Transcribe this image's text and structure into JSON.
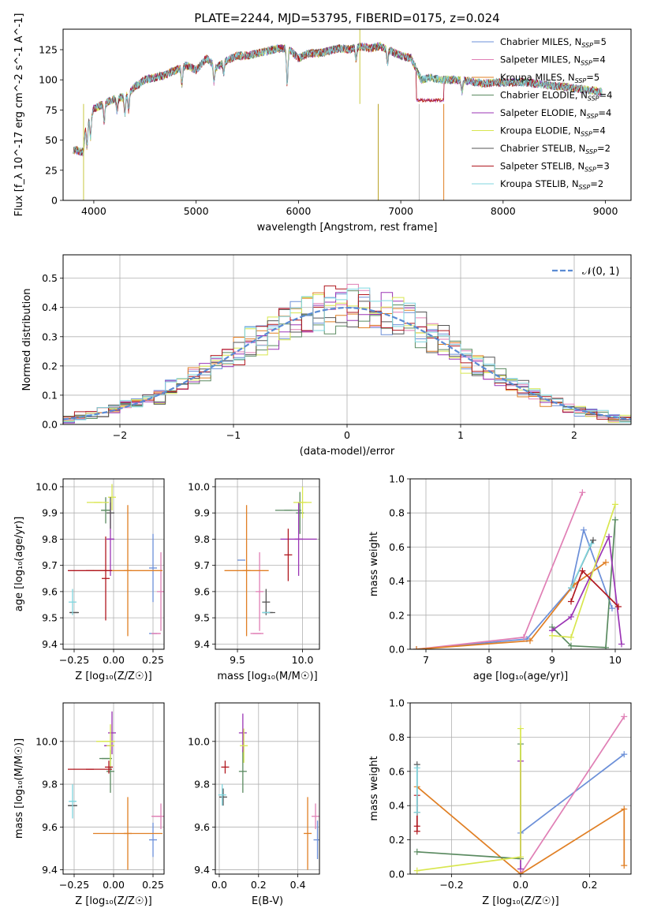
{
  "figure_title": "PLATE=2244, MJD=53795, FIBERID=0175, z=0.024",
  "models": [
    {
      "name": "Chabrier MILES",
      "nssp": "5",
      "color": "#6b8fd8"
    },
    {
      "name": "Salpeter MILES",
      "nssp": "4",
      "color": "#e07fb5"
    },
    {
      "name": "Kroupa MILES",
      "nssp": "5",
      "color": "#e07f24"
    },
    {
      "name": "Chabrier ELODIE",
      "nssp": "4",
      "color": "#5a8a60"
    },
    {
      "name": "Salpeter ELODIE",
      "nssp": "4",
      "color": "#9b35b5"
    },
    {
      "name": "Kroupa ELODIE",
      "nssp": "4",
      "color": "#d8e64e"
    },
    {
      "name": "Chabrier STELIB",
      "nssp": "2",
      "color": "#555555"
    },
    {
      "name": "Salpeter STELIB",
      "nssp": "3",
      "color": "#b0171f"
    },
    {
      "name": "Kroupa STELIB",
      "nssp": "2",
      "color": "#7fd6df"
    }
  ],
  "nssp_prefix": "N",
  "nssp_sub": "SSP",
  "chart_data": [
    {
      "id": "spectrum",
      "type": "line",
      "xlabel": "wavelength [Angstrom, rest frame]",
      "ylabel": "Flux [f_λ 10^-17 erg cm^-2 s^-1 A^-1]",
      "xlim": [
        3700,
        9250
      ],
      "ylim": [
        0,
        142
      ],
      "xticks": [
        4000,
        5000,
        6000,
        7000,
        8000,
        9000
      ],
      "yticks": [
        0,
        25,
        50,
        75,
        100,
        125
      ],
      "grid": false,
      "legend": "top-right",
      "continuum_points": [
        [
          3800,
          42
        ],
        [
          3900,
          40
        ],
        [
          3920,
          62
        ],
        [
          4000,
          76
        ],
        [
          4100,
          80
        ],
        [
          4200,
          84
        ],
        [
          4300,
          86
        ],
        [
          4400,
          94
        ],
        [
          4500,
          100
        ],
        [
          4700,
          104
        ],
        [
          4900,
          112
        ],
        [
          5000,
          108
        ],
        [
          5100,
          118
        ],
        [
          5200,
          110
        ],
        [
          5300,
          116
        ],
        [
          5400,
          120
        ],
        [
          5500,
          120
        ],
        [
          5600,
          122
        ],
        [
          5700,
          124
        ],
        [
          5800,
          126
        ],
        [
          5900,
          126
        ],
        [
          6000,
          118
        ],
        [
          6100,
          122
        ],
        [
          6200,
          122
        ],
        [
          6300,
          124
        ],
        [
          6400,
          126
        ],
        [
          6500,
          125
        ],
        [
          6600,
          128
        ],
        [
          6700,
          126
        ],
        [
          6800,
          128
        ],
        [
          6900,
          124
        ],
        [
          7000,
          120
        ],
        [
          7100,
          118
        ],
        [
          7200,
          100
        ],
        [
          7300,
          102
        ],
        [
          7400,
          100
        ],
        [
          7600,
          100
        ],
        [
          7800,
          97
        ],
        [
          8000,
          98
        ],
        [
          8200,
          98
        ],
        [
          8400,
          96
        ],
        [
          8600,
          94
        ],
        [
          8800,
          92
        ],
        [
          8970,
          90
        ]
      ],
      "absorption_lines": [
        [
          3934,
          20
        ],
        [
          3968,
          18
        ],
        [
          4102,
          16
        ],
        [
          4227,
          10
        ],
        [
          4304,
          14
        ],
        [
          4340,
          14
        ],
        [
          4861,
          14
        ],
        [
          5175,
          14
        ],
        [
          5270,
          8
        ],
        [
          5890,
          30
        ],
        [
          6563,
          10
        ],
        [
          6870,
          12
        ],
        [
          7600,
          10
        ]
      ],
      "spikes": [
        [
          3900,
          0
        ],
        [
          6780,
          0
        ],
        [
          6600,
          142
        ],
        [
          7180,
          0
        ],
        [
          7420,
          0
        ]
      ],
      "salpeter_drop": {
        "from": 7150,
        "to": 7420,
        "value": 83,
        "models": [
          2,
          4,
          7
        ]
      }
    },
    {
      "id": "residuals",
      "type": "line",
      "xlabel": "(data-model)/error",
      "ylabel": "Normed distribution",
      "xlim": [
        -2.5,
        2.5
      ],
      "ylim": [
        0,
        0.58
      ],
      "xticks": [
        -2,
        -1,
        0,
        1,
        2
      ],
      "yticks": [
        0,
        0.1,
        0.2,
        0.3,
        0.4,
        0.5
      ],
      "grid": true,
      "legend": "top-right",
      "legend_label": "𝒩(0, 1)",
      "gaussian": {
        "mu": 0,
        "sigma": 1,
        "color": "#5b8bd4"
      },
      "bin_width": 0.1
    },
    {
      "id": "age-vs-Z",
      "type": "scatter",
      "xlabel": "Z [log₁₀(Z/Z☉)]",
      "ylabel": "age  [log₁₀(age/yr)]",
      "xlim": [
        -0.32,
        0.32
      ],
      "ylim": [
        9.38,
        10.03
      ],
      "xticks": [
        -0.25,
        0.0,
        0.25
      ],
      "yticks": [
        9.4,
        9.5,
        9.6,
        9.7,
        9.8,
        9.9,
        10.0
      ],
      "grid": true,
      "points": [
        {
          "model": 0,
          "x": 0.25,
          "y": 9.69,
          "xerr": 0.0,
          "yerr": 0.13
        },
        {
          "model": 0,
          "x": 0.25,
          "y": 9.44,
          "xerr": 0.0,
          "yerr": 0.0
        },
        {
          "model": 1,
          "x": 0.27,
          "y": 9.44,
          "xerr": 0.03,
          "yerr": 0.0
        },
        {
          "model": 1,
          "x": 0.3,
          "y": 9.6,
          "xerr": 0.0,
          "yerr": 0.15
        },
        {
          "model": 2,
          "x": 0.09,
          "y": 9.68,
          "xerr": 0.22,
          "yerr": 0.25
        },
        {
          "model": 3,
          "x": -0.05,
          "y": 9.91,
          "xerr": 0.03,
          "yerr": 0.05
        },
        {
          "model": 4,
          "x": -0.02,
          "y": 9.8,
          "xerr": 0.02,
          "yerr": 0.14
        },
        {
          "model": 5,
          "x": -0.1,
          "y": 9.94,
          "xerr": 0.07,
          "yerr": 0.0
        },
        {
          "model": 5,
          "x": -0.01,
          "y": 9.96,
          "xerr": 0.0,
          "yerr": 0.05
        },
        {
          "model": 6,
          "x": -0.25,
          "y": 9.52,
          "xerr": 0.03,
          "yerr": 0.0
        },
        {
          "model": 6,
          "x": -0.02,
          "y": 9.9,
          "xerr": 0.0,
          "yerr": 0.06
        },
        {
          "model": 7,
          "x": -0.15,
          "y": 9.68,
          "xerr": 0.14,
          "yerr": 0.0
        },
        {
          "model": 7,
          "x": -0.05,
          "y": 9.65,
          "xerr": 0.0,
          "yerr": 0.16
        },
        {
          "model": 8,
          "x": -0.26,
          "y": 9.56,
          "xerr": 0.0,
          "yerr": 0.05
        }
      ]
    },
    {
      "id": "age-vs-mass",
      "type": "scatter",
      "xlabel": "mass [log₁₀(M/M☉)]",
      "ylabel": "",
      "xlim": [
        9.33,
        10.13
      ],
      "ylim": [
        9.38,
        10.03
      ],
      "xticks": [
        9.5,
        10.0
      ],
      "yticks": [
        9.4,
        9.5,
        9.6,
        9.7,
        9.8,
        9.9,
        10.0
      ],
      "grid": true,
      "points": [
        {
          "model": 0,
          "x": 9.53,
          "y": 9.72,
          "xerr": 0.0,
          "yerr": 0.0
        },
        {
          "model": 1,
          "x": 9.65,
          "y": 9.44,
          "xerr": 0.05,
          "yerr": 0.0
        },
        {
          "model": 1,
          "x": 9.67,
          "y": 9.6,
          "xerr": 0.0,
          "yerr": 0.15
        },
        {
          "model": 2,
          "x": 9.57,
          "y": 9.68,
          "xerr": 0.17,
          "yerr": 0.25
        },
        {
          "model": 3,
          "x": 9.89,
          "y": 9.91,
          "xerr": 0.1,
          "yerr": 0.0
        },
        {
          "model": 3,
          "x": 9.98,
          "y": 9.9,
          "xerr": 0.0,
          "yerr": 0.08
        },
        {
          "model": 4,
          "x": 9.97,
          "y": 9.8,
          "xerr": 0.14,
          "yerr": 0.14
        },
        {
          "model": 5,
          "x": 10.0,
          "y": 9.94,
          "xerr": 0.07,
          "yerr": 0.06
        },
        {
          "model": 6,
          "x": 9.74,
          "y": 9.52,
          "xerr": 0.05,
          "yerr": 0.0
        },
        {
          "model": 6,
          "x": 9.72,
          "y": 9.56,
          "xerr": 0.0,
          "yerr": 0.05
        },
        {
          "model": 7,
          "x": 9.89,
          "y": 9.74,
          "xerr": 0.0,
          "yerr": 0.1
        },
        {
          "model": 8,
          "x": 9.72,
          "y": 9.52,
          "xerr": 0.02,
          "yerr": 0.0
        }
      ]
    },
    {
      "id": "weight-vs-age",
      "type": "line",
      "xlabel": "age  [log₁₀(age/yr)]",
      "ylabel": "mass weight",
      "xlim": [
        6.75,
        10.25
      ],
      "ylim": [
        0,
        1.0
      ],
      "xticks": [
        7,
        8,
        9,
        10
      ],
      "yticks": [
        0.0,
        0.2,
        0.4,
        0.6,
        0.8,
        1.0
      ],
      "grid": true,
      "series": [
        {
          "model": 0,
          "x": [
            6.85,
            8.6,
            9.3,
            9.5,
            9.95
          ],
          "y": [
            0.0,
            0.06,
            0.36,
            0.7,
            0.24
          ]
        },
        {
          "model": 1,
          "x": [
            6.85,
            8.55,
            9.48
          ],
          "y": [
            0.0,
            0.07,
            0.92
          ]
        },
        {
          "model": 2,
          "x": [
            6.85,
            8.65,
            9.35,
            9.85
          ],
          "y": [
            0.0,
            0.05,
            0.38,
            0.51
          ]
        },
        {
          "model": 3,
          "x": [
            9.0,
            9.3,
            9.85,
            10.0
          ],
          "y": [
            0.13,
            0.02,
            0.01,
            0.76
          ]
        },
        {
          "model": 4,
          "x": [
            9.0,
            9.3,
            9.9,
            10.1
          ],
          "y": [
            0.11,
            0.19,
            0.66,
            0.03
          ]
        },
        {
          "model": 5,
          "x": [
            9.0,
            9.3,
            10.0
          ],
          "y": [
            0.08,
            0.07,
            0.85
          ]
        },
        {
          "model": 6,
          "x": [
            9.3,
            9.65
          ],
          "y": [
            0.36,
            0.64
          ]
        },
        {
          "model": 7,
          "x": [
            9.3,
            9.48,
            10.05
          ],
          "y": [
            0.28,
            0.46,
            0.25
          ]
        },
        {
          "model": 8,
          "x": [
            9.3,
            9.62
          ],
          "y": [
            0.36,
            0.62
          ]
        }
      ]
    },
    {
      "id": "mass-vs-Z",
      "type": "scatter",
      "xlabel": "Z [log₁₀(Z/Z☉)]",
      "ylabel": "mass [log₁₀(M/M☉)]",
      "xlim": [
        -0.32,
        0.32
      ],
      "ylim": [
        9.38,
        10.18
      ],
      "xticks": [
        -0.25,
        0.0,
        0.25
      ],
      "yticks": [
        9.4,
        9.6,
        9.8,
        10.0
      ],
      "grid": true,
      "points": [
        {
          "model": 0,
          "x": 0.25,
          "y": 9.54,
          "xerr": 0.0,
          "yerr": 0.08
        },
        {
          "model": 1,
          "x": 0.27,
          "y": 9.65,
          "xerr": 0.03,
          "yerr": 0.0
        },
        {
          "model": 1,
          "x": 0.3,
          "y": 9.65,
          "xerr": 0.0,
          "yerr": 0.06
        },
        {
          "model": 2,
          "x": 0.09,
          "y": 9.57,
          "xerr": 0.22,
          "yerr": 0.17
        },
        {
          "model": 3,
          "x": -0.05,
          "y": 9.92,
          "xerr": 0.04,
          "yerr": 0.0
        },
        {
          "model": 3,
          "x": -0.02,
          "y": 9.86,
          "xerr": 0.0,
          "yerr": 0.1
        },
        {
          "model": 4,
          "x": -0.03,
          "y": 9.98,
          "xerr": 0.03,
          "yerr": 0.0
        },
        {
          "model": 4,
          "x": -0.01,
          "y": 10.04,
          "xerr": 0.0,
          "yerr": 0.1
        },
        {
          "model": 5,
          "x": -0.05,
          "y": 10.0,
          "xerr": 0.06,
          "yerr": 0.0
        },
        {
          "model": 5,
          "x": -0.02,
          "y": 9.98,
          "xerr": 0.0,
          "yerr": 0.1
        },
        {
          "model": 6,
          "x": -0.26,
          "y": 9.7,
          "xerr": 0.03,
          "yerr": 0.0
        },
        {
          "model": 7,
          "x": -0.15,
          "y": 9.87,
          "xerr": 0.14,
          "yerr": 0.0
        },
        {
          "model": 7,
          "x": -0.03,
          "y": 9.88,
          "xerr": 0.0,
          "yerr": 0.03
        },
        {
          "model": 8,
          "x": -0.26,
          "y": 9.72,
          "xerr": 0.02,
          "yerr": 0.08
        }
      ]
    },
    {
      "id": "mass-vs-EBV",
      "type": "scatter",
      "xlabel": "E(B-V)",
      "ylabel": "",
      "xlim": [
        -0.02,
        0.51
      ],
      "ylim": [
        9.38,
        10.18
      ],
      "xticks": [
        0.0,
        0.2,
        0.4
      ],
      "yticks": [
        9.4,
        9.6,
        9.8,
        10.0
      ],
      "grid": true,
      "points": [
        {
          "model": 0,
          "x": 0.5,
          "y": 9.54,
          "xerr": 0.0,
          "yerr": 0.09
        },
        {
          "model": 1,
          "x": 0.49,
          "y": 9.65,
          "xerr": 0.0,
          "yerr": 0.06
        },
        {
          "model": 2,
          "x": 0.45,
          "y": 9.57,
          "xerr": 0.0,
          "yerr": 0.17
        },
        {
          "model": 3,
          "x": 0.12,
          "y": 9.86,
          "xerr": 0.0,
          "yerr": 0.1
        },
        {
          "model": 4,
          "x": 0.12,
          "y": 10.04,
          "xerr": 0.0,
          "yerr": 0.09
        },
        {
          "model": 5,
          "x": 0.125,
          "y": 9.98,
          "xerr": 0.0,
          "yerr": 0.08
        },
        {
          "model": 6,
          "x": 0.02,
          "y": 9.74,
          "xerr": 0.0,
          "yerr": 0.04
        },
        {
          "model": 7,
          "x": 0.03,
          "y": 9.88,
          "xerr": 0.0,
          "yerr": 0.03
        },
        {
          "model": 8,
          "x": 0.015,
          "y": 9.75,
          "xerr": 0.0,
          "yerr": 0.05
        }
      ]
    },
    {
      "id": "weight-vs-Z",
      "type": "line",
      "xlabel": "Z [log₁₀(Z/Z☉)]",
      "ylabel": "mass weight",
      "xlim": [
        -0.32,
        0.32
      ],
      "ylim": [
        0,
        1.0
      ],
      "xticks": [
        -0.2,
        0.0,
        0.2
      ],
      "yticks": [
        0.0,
        0.2,
        0.4,
        0.6,
        0.8,
        1.0
      ],
      "grid": true,
      "series": [
        {
          "model": 0,
          "x": [
            0.0,
            0.3
          ],
          "y": [
            0.24,
            0.7
          ]
        },
        {
          "model": 1,
          "x": [
            0.0,
            0.3
          ],
          "y": [
            0.0,
            0.92
          ]
        },
        {
          "model": 2,
          "x": [
            -0.3,
            0.0,
            0.3,
            0.3
          ],
          "y": [
            0.51,
            0.0,
            0.38,
            0.05
          ]
        },
        {
          "model": 3,
          "x": [
            -0.3,
            0.0,
            0.0
          ],
          "y": [
            0.13,
            0.09,
            0.76
          ]
        },
        {
          "model": 4,
          "x": [
            0.0,
            0.0
          ],
          "y": [
            0.03,
            0.66
          ]
        },
        {
          "model": 5,
          "x": [
            -0.3,
            0.0,
            0.0
          ],
          "y": [
            0.02,
            0.1,
            0.85
          ]
        },
        {
          "model": 6,
          "x": [
            -0.3,
            -0.3
          ],
          "y": [
            0.36,
            0.64
          ]
        },
        {
          "model": 7,
          "x": [
            -0.3,
            -0.3,
            -0.3
          ],
          "y": [
            0.25,
            0.28,
            0.46
          ]
        },
        {
          "model": 8,
          "x": [
            -0.3,
            -0.3
          ],
          "y": [
            0.36,
            0.62
          ]
        }
      ]
    }
  ]
}
